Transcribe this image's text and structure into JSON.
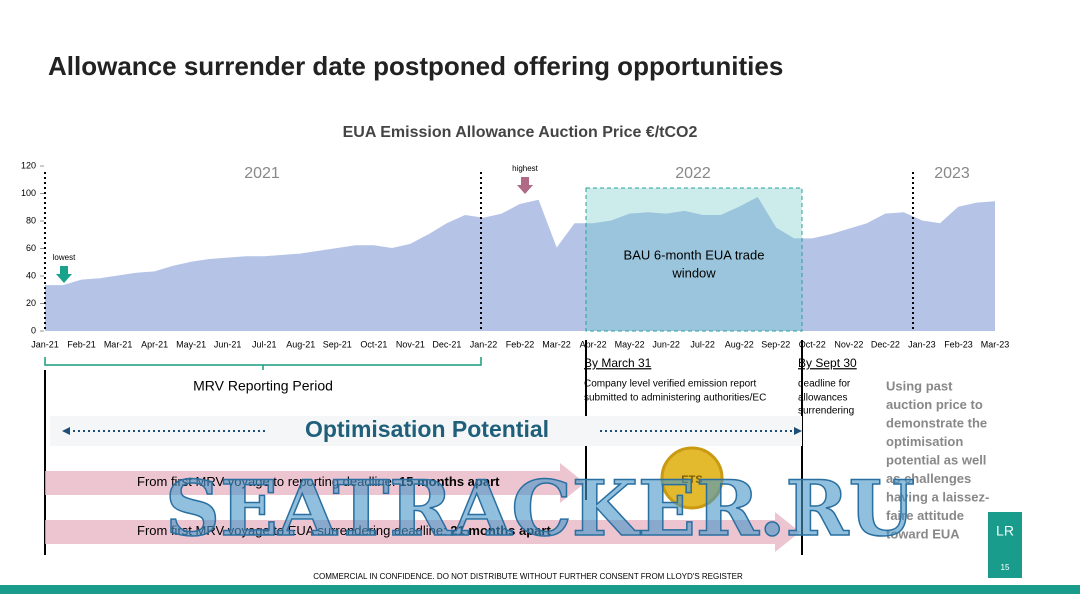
{
  "slide": {
    "title": "Allowance surrender date postponed offering opportunities",
    "mrv_label": "MRV Reporting Period",
    "march_heading": "By March 31",
    "march_text": [
      "Company level verified emission report",
      "submitted to administering authorities/EC"
    ],
    "sept_heading": "By Sept 30",
    "sept_text": [
      "deadline for",
      "allowances",
      "surrendering"
    ],
    "optimisation": "Optimisation Potential",
    "arrow1": {
      "text": "From first MRV voyage to reporting deadline: ",
      "bold": "15 months apart"
    },
    "arrow2": {
      "text": "From first MRV voyage to EUA surrendering deadline: ",
      "bold": "21 months apart"
    },
    "side_note": [
      "Using past",
      "auction price to",
      "demonstrate the",
      "optimisation",
      "potential as well",
      "as challenges",
      "having a laissez-",
      "faire attitude",
      "toward EUA"
    ],
    "badge": "ETS",
    "footer": "COMMERCIAL IN CONFIDENCE. DO NOT DISTRIBUTE WITHOUT FURTHER CONSENT FROM LLOYD'S REGISTER",
    "page": "15",
    "logo": "LR",
    "watermark": "SEATRACKER.RU"
  },
  "chart_data": {
    "type": "area",
    "title": "EUA Emission Allowance Auction Price €/tCO2",
    "categories": [
      "Jan-21",
      null,
      "Feb-21",
      null,
      "Mar-21",
      null,
      "Apr-21",
      null,
      "May-21",
      null,
      "Jun-21",
      null,
      "Jul-21",
      null,
      "Aug-21",
      null,
      "Sep-21",
      null,
      "Oct-21",
      null,
      "Nov-21",
      null,
      "Dec-21",
      null,
      "Jan-22",
      null,
      "Feb-22",
      null,
      "Mar-22",
      null,
      "Apr-22",
      null,
      "May-22",
      null,
      "Jun-22",
      null,
      "Jul-22",
      null,
      "Aug-22",
      null,
      "Sep-22",
      null,
      "Oct-22",
      null,
      "Nov-22",
      null,
      "Dec-22",
      null,
      "Jan-23",
      null,
      "Feb-23",
      null,
      "Mar-23"
    ],
    "series": [
      {
        "name": "EUA price",
        "color": "#b4c3e6",
        "values": [
          33,
          33,
          37,
          38,
          40,
          42,
          43,
          47,
          50,
          52,
          53,
          54,
          54,
          55,
          56,
          58,
          60,
          62,
          62,
          60,
          63,
          70,
          78,
          84,
          82,
          85,
          92,
          95,
          60,
          78,
          78,
          80,
          85,
          86,
          85,
          87,
          84,
          84,
          90,
          97,
          75,
          67,
          67,
          70,
          74,
          78,
          85,
          86,
          80,
          78,
          90,
          93,
          94
        ]
      }
    ],
    "ylim": [
      0,
      120
    ],
    "yticks": [
      0,
      20,
      40,
      60,
      80,
      100,
      120
    ],
    "annotations": {
      "years": [
        "2021",
        "2022",
        "2023"
      ],
      "highest": "highest",
      "lowest": "lowest",
      "window": [
        "BAU 6-month EUA trade",
        "window"
      ]
    }
  }
}
